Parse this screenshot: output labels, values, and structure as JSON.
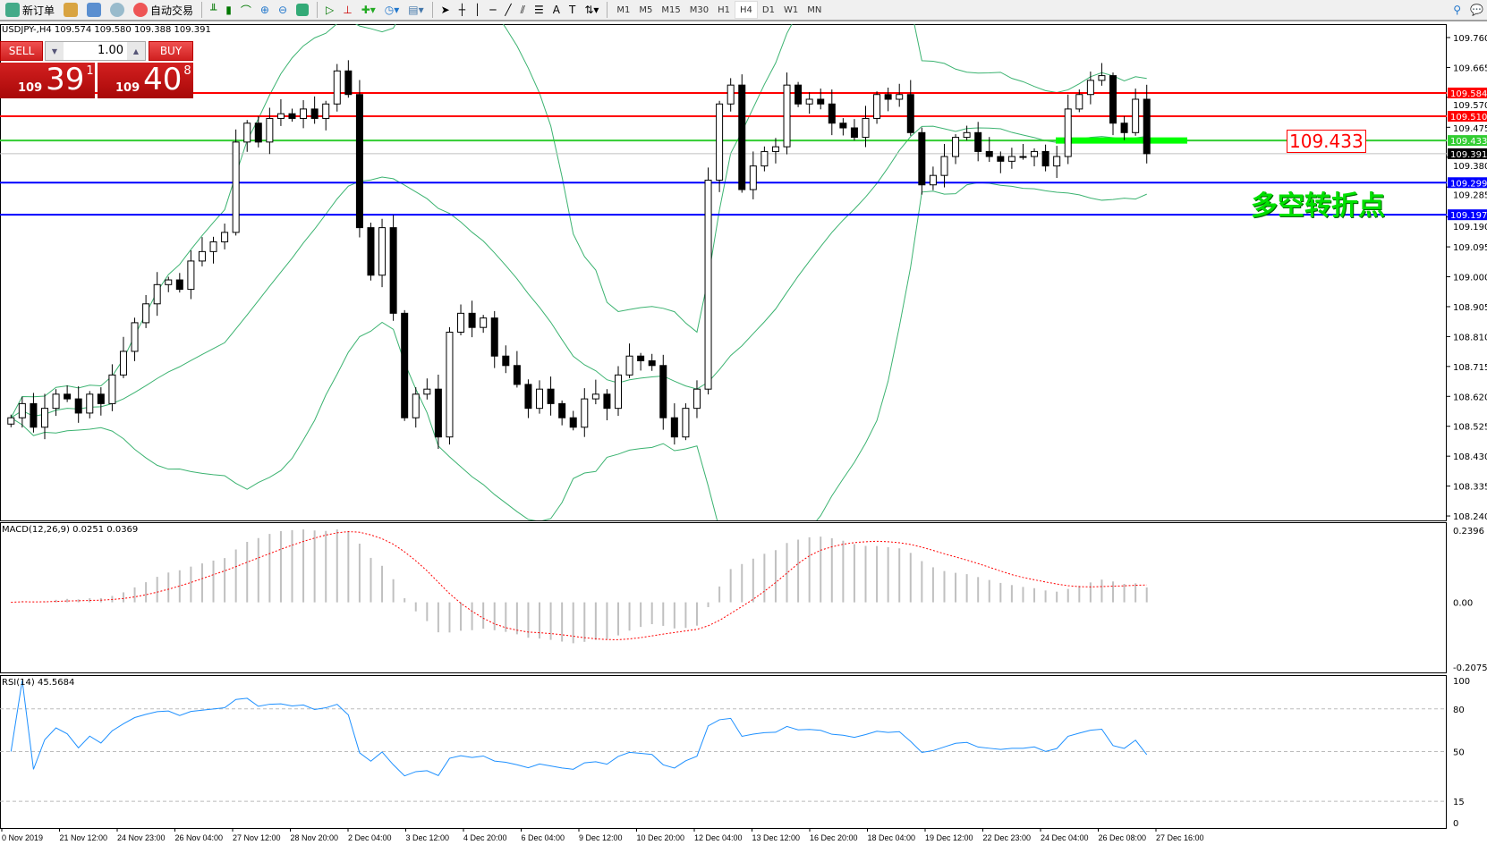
{
  "toolbar": {
    "new_order": "新订单",
    "auto_trading": "自动交易",
    "timeframes": [
      "M1",
      "M5",
      "M15",
      "M30",
      "H1",
      "H4",
      "D1",
      "W1",
      "MN"
    ],
    "active_timeframe": "H4"
  },
  "header": {
    "info": "USDJPY-,H4  109.574 109.580 109.388 109.391"
  },
  "oneclick": {
    "sell": "SELL",
    "buy": "BUY",
    "lot": "1.00",
    "sell_small": "109",
    "sell_big": "39",
    "sell_tiny": "1",
    "buy_small": "109",
    "buy_big": "40",
    "buy_tiny": "8"
  },
  "annotation": {
    "text": "多空转折点",
    "price_label": "109.433"
  },
  "colors": {
    "bull": "#ffffff",
    "bear": "#000000",
    "bands": "#3cb371",
    "macd_hist": "#c0c0c0",
    "macd_signal": "#ff0000",
    "rsi": "#1e90ff",
    "resistance": "#ff0000",
    "pivot": "#32cd32",
    "support": "#0000ff"
  },
  "chart_data": [
    {
      "type": "candlestick",
      "symbol": "USDJPY-",
      "timeframe": "H4",
      "ylim": [
        108.24,
        109.76
      ],
      "yticks": [
        "109.760",
        "109.665",
        "109.570",
        "109.475",
        "109.380",
        "109.285",
        "109.190",
        "109.095",
        "109.000",
        "108.905",
        "108.810",
        "108.715",
        "108.620",
        "108.525",
        "108.430",
        "108.335",
        "108.240"
      ],
      "xticks": [
        "0 Nov 2019",
        "21 Nov 12:00",
        "24 Nov 23:00",
        "26 Nov 04:00",
        "27 Nov 12:00",
        "28 Nov 20:00",
        "2 Dec 04:00",
        "3 Dec 12:00",
        "4 Dec 20:00",
        "6 Dec 04:00",
        "9 Dec 12:00",
        "10 Dec 20:00",
        "12 Dec 04:00",
        "13 Dec 12:00",
        "16 Dec 20:00",
        "18 Dec 04:00",
        "19 Dec 12:00",
        "22 Dec 23:00",
        "24 Dec 04:00",
        "26 Dec 08:00",
        "27 Dec 16:00"
      ],
      "close": [
        108.552,
        108.597,
        108.522,
        108.582,
        108.627,
        108.612,
        108.567,
        108.627,
        108.597,
        108.688,
        108.763,
        108.854,
        108.914,
        108.975,
        108.99,
        108.96,
        109.05,
        109.08,
        109.111,
        109.141,
        109.428,
        109.488,
        109.428,
        109.503,
        109.518,
        109.503,
        109.533,
        109.503,
        109.549,
        109.654,
        109.579,
        109.156,
        109.005,
        109.156,
        108.884,
        108.552,
        108.627,
        108.643,
        108.491,
        108.824,
        108.884,
        108.839,
        108.869,
        108.748,
        108.718,
        108.658,
        108.582,
        108.643,
        108.597,
        108.552,
        108.522,
        108.612,
        108.627,
        108.582,
        108.688,
        108.748,
        108.733,
        108.718,
        108.552,
        108.491,
        108.582,
        108.643,
        109.307,
        109.549,
        109.609,
        109.277,
        109.352,
        109.398,
        109.413,
        109.609,
        109.549,
        109.564,
        109.549,
        109.488,
        109.473,
        109.443,
        109.503,
        109.579,
        109.564,
        109.579,
        109.458,
        109.292,
        109.322,
        109.382,
        109.443,
        109.458,
        109.398,
        109.382,
        109.367,
        109.382,
        109.382,
        109.398,
        109.352,
        109.382,
        109.533,
        109.579,
        109.624,
        109.639,
        109.488,
        109.458,
        109.564,
        109.391
      ],
      "indicator": "Bollinger Bands",
      "hlines": [
        {
          "price": 109.584,
          "label": "109.584",
          "role": "resistance"
        },
        {
          "price": 109.51,
          "label": "109.510",
          "role": "resistance"
        },
        {
          "price": 109.433,
          "label": "109.433",
          "role": "pivot"
        },
        {
          "price": 109.391,
          "label": "109.391",
          "role": "current"
        },
        {
          "price": 109.299,
          "label": "109.299",
          "role": "support"
        },
        {
          "price": 109.197,
          "label": "109.197",
          "role": "support"
        }
      ]
    },
    {
      "type": "bar+line",
      "title": "MACD(12,26,9) 0.0251 0.0369",
      "ylim": [
        -0.2075,
        0.2396
      ],
      "yticks": [
        "0.2396",
        "0.00",
        "-0.2075"
      ]
    },
    {
      "type": "line",
      "title": "RSI(14) 45.5684",
      "ylim": [
        0,
        100
      ],
      "levels": [
        80,
        50,
        15
      ],
      "yticks": [
        "100",
        "80",
        "50",
        "15",
        "0"
      ]
    }
  ]
}
